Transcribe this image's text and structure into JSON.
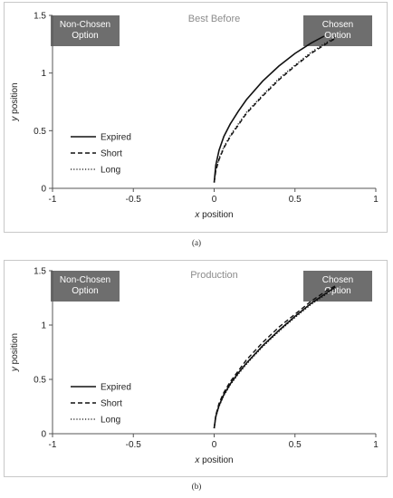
{
  "charts": {
    "a": {
      "panel_label": "(a)",
      "chart_title": "Best Before",
      "nonchosen_label": [
        "Non-Chosen",
        "Option"
      ],
      "chosen_label": [
        "Chosen",
        "Option"
      ],
      "xlabel": "x position",
      "ylabel": "y position"
    },
    "b": {
      "panel_label": "(b)",
      "chart_title": "Production",
      "nonchosen_label": [
        "Non-Chosen",
        "Option"
      ],
      "chosen_label": [
        "Chosen",
        "Option"
      ],
      "xlabel": "x position",
      "ylabel": "y position"
    }
  },
  "chart_data": [
    {
      "type": "line",
      "title": "Best Before",
      "xlabel": "x position",
      "ylabel": "y position",
      "xlim": [
        -1,
        1
      ],
      "ylim": [
        0,
        1.5
      ],
      "xticks": [
        "-1",
        "-0.5",
        "0",
        "0.5",
        "1"
      ],
      "yticks": [
        "0",
        "0.5",
        "1",
        "1.5"
      ],
      "grid": false,
      "legend_position": "left",
      "series": [
        {
          "name": "Expired",
          "style": "solid",
          "x": [
            0,
            0.01,
            0.03,
            0.06,
            0.1,
            0.15,
            0.2,
            0.3,
            0.4,
            0.5,
            0.6,
            0.68
          ],
          "y": [
            0.05,
            0.2,
            0.33,
            0.45,
            0.56,
            0.67,
            0.77,
            0.93,
            1.06,
            1.17,
            1.26,
            1.32
          ]
        },
        {
          "name": "Short",
          "style": "dashed",
          "x": [
            0,
            0.01,
            0.03,
            0.06,
            0.1,
            0.15,
            0.2,
            0.3,
            0.4,
            0.5,
            0.6,
            0.7,
            0.75
          ],
          "y": [
            0.05,
            0.15,
            0.25,
            0.35,
            0.45,
            0.55,
            0.65,
            0.8,
            0.94,
            1.06,
            1.17,
            1.26,
            1.3
          ]
        },
        {
          "name": "Long",
          "style": "dotted",
          "x": [
            0,
            0.01,
            0.03,
            0.06,
            0.1,
            0.15,
            0.2,
            0.3,
            0.4,
            0.5,
            0.6,
            0.7,
            0.75
          ],
          "y": [
            0.05,
            0.16,
            0.26,
            0.36,
            0.46,
            0.56,
            0.66,
            0.81,
            0.95,
            1.07,
            1.18,
            1.27,
            1.31
          ]
        }
      ]
    },
    {
      "type": "line",
      "title": "Production",
      "xlabel": "x position",
      "ylabel": "y position",
      "xlim": [
        -1,
        1
      ],
      "ylim": [
        0,
        1.5
      ],
      "xticks": [
        "-1",
        "-0.5",
        "0",
        "0.5",
        "1"
      ],
      "yticks": [
        "0",
        "0.5",
        "1",
        "1.5"
      ],
      "grid": false,
      "legend_position": "left",
      "series": [
        {
          "name": "Expired",
          "style": "solid",
          "x": [
            0,
            0.01,
            0.03,
            0.06,
            0.1,
            0.15,
            0.2,
            0.3,
            0.4,
            0.5,
            0.6,
            0.7,
            0.75
          ],
          "y": [
            0.05,
            0.16,
            0.26,
            0.36,
            0.46,
            0.56,
            0.65,
            0.81,
            0.95,
            1.08,
            1.2,
            1.3,
            1.35
          ]
        },
        {
          "name": "Short",
          "style": "dashed",
          "x": [
            0,
            0.01,
            0.03,
            0.06,
            0.1,
            0.15,
            0.2,
            0.3,
            0.4,
            0.5,
            0.6,
            0.7,
            0.75
          ],
          "y": [
            0.05,
            0.17,
            0.28,
            0.38,
            0.48,
            0.58,
            0.68,
            0.84,
            0.98,
            1.1,
            1.22,
            1.32,
            1.36
          ]
        },
        {
          "name": "Long",
          "style": "dotted",
          "x": [
            0,
            0.01,
            0.03,
            0.06,
            0.1,
            0.15,
            0.2,
            0.3,
            0.4,
            0.5,
            0.6,
            0.7,
            0.75
          ],
          "y": [
            0.05,
            0.15,
            0.25,
            0.35,
            0.45,
            0.55,
            0.64,
            0.8,
            0.94,
            1.07,
            1.19,
            1.29,
            1.34
          ]
        }
      ]
    }
  ]
}
